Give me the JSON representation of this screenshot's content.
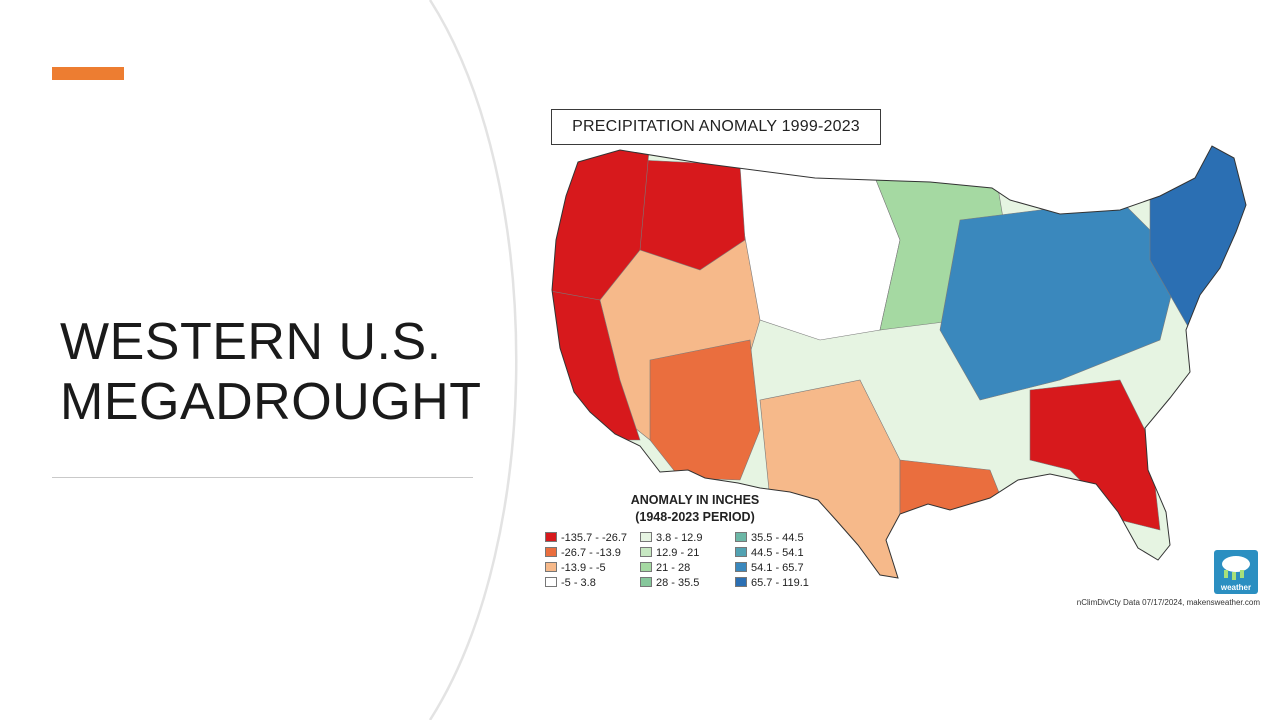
{
  "slide": {
    "title_lines": [
      "WESTERN U.S.",
      "MEGADROUGHT"
    ],
    "accent_color": "#ED7D31"
  },
  "map": {
    "title": "PRECIPITATION ANOMALY 1999-2023",
    "legend_title_lines": [
      "ANOMALY IN INCHES",
      "(1948-2023 PERIOD)"
    ],
    "legend": [
      {
        "label": "-135.7 - -26.7",
        "color": "#d7191c"
      },
      {
        "label": "-26.7 - -13.9",
        "color": "#ea6e3e"
      },
      {
        "label": "-13.9 - -5",
        "color": "#f6b98a"
      },
      {
        "label": "-5 - 3.8",
        "color": "#ffffff"
      },
      {
        "label": "3.8 - 12.9",
        "color": "#e6f4e2"
      },
      {
        "label": "12.9 - 21",
        "color": "#c7e8c2"
      },
      {
        "label": "21 - 28",
        "color": "#a5d9a2"
      },
      {
        "label": "28 - 35.5",
        "color": "#86c79b"
      },
      {
        "label": "35.5 - 44.5",
        "color": "#6cb7a6"
      },
      {
        "label": "44.5 - 54.1",
        "color": "#52a2b2"
      },
      {
        "label": "54.1 - 65.7",
        "color": "#3a88bd"
      },
      {
        "label": "65.7 - 119.1",
        "color": "#2b6fb3"
      }
    ],
    "regions": [
      {
        "name": "pacific-northwest",
        "class": 0
      },
      {
        "name": "california",
        "class": 0
      },
      {
        "name": "idaho-montana",
        "class": 0
      },
      {
        "name": "great-basin",
        "class": 2
      },
      {
        "name": "wyoming-colorado",
        "class": 3
      },
      {
        "name": "arizona-new-mexico",
        "class": 1
      },
      {
        "name": "texas-southern-plains",
        "class": 2
      },
      {
        "name": "northern-plains",
        "class": 4
      },
      {
        "name": "central-plains",
        "class": 6
      },
      {
        "name": "great-lakes-ohio-valley",
        "class": 10
      },
      {
        "name": "northeast",
        "class": 11
      },
      {
        "name": "gulf-coast",
        "class": 1
      },
      {
        "name": "southeast-georgia-carolinas",
        "class": 0
      }
    ],
    "credit": "nClimDivCty Data 07/17/2024, makensweather.com",
    "logo_word": "weather"
  }
}
